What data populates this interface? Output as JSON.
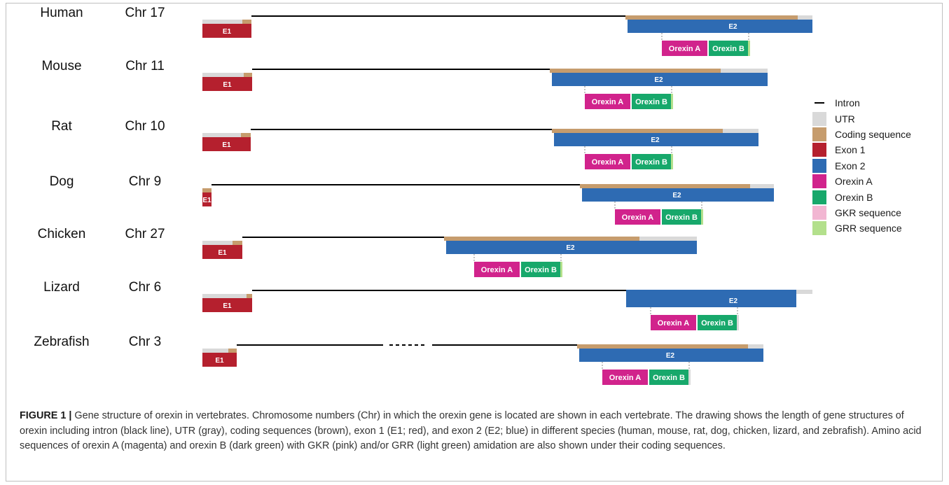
{
  "colors": {
    "intron": "#000000",
    "utr": "#d9d9d9",
    "coding": "#c69c6d",
    "exon1": "#b5202e",
    "exon2": "#2e6bb3",
    "orexin_a": "#d1238c",
    "orexin_b": "#17a86b",
    "gkr": "#f2b6d2",
    "grr": "#b3e08c"
  },
  "species": [
    {
      "name": "Human",
      "chr": "Chr 17",
      "e1": "E1",
      "e2": "E2",
      "orexin_a": "Orexin A",
      "orexin_b": "Orexin B"
    },
    {
      "name": "Mouse",
      "chr": "Chr 11",
      "e1": "E1",
      "e2": "E2",
      "orexin_a": "Orexin A",
      "orexin_b": "Orexin B"
    },
    {
      "name": "Rat",
      "chr": "Chr 10",
      "e1": "E1",
      "e2": "E2",
      "orexin_a": "Orexin A",
      "orexin_b": "Orexin B"
    },
    {
      "name": "Dog",
      "chr": "Chr 9",
      "e1": "E1",
      "e2": "E2",
      "orexin_a": "Orexin A",
      "orexin_b": "Orexin B"
    },
    {
      "name": "Chicken",
      "chr": "Chr 27",
      "e1": "E1",
      "e2": "E2",
      "orexin_a": "Orexin A",
      "orexin_b": "Orexin B"
    },
    {
      "name": "Lizard",
      "chr": "Chr 6",
      "e1": "E1",
      "e2": "E2",
      "orexin_a": "Orexin A",
      "orexin_b": "Orexin B"
    },
    {
      "name": "Zebrafish",
      "chr": "Chr 3",
      "e1": "E1",
      "e2": "E2",
      "orexin_a": "Orexin A",
      "orexin_b": "Orexin B"
    }
  ],
  "legend": [
    {
      "label": "Intron",
      "color": "#000000",
      "shape": "line"
    },
    {
      "label": "UTR",
      "color": "#d9d9d9",
      "shape": "box"
    },
    {
      "label": "Coding sequence",
      "color": "#c69c6d",
      "shape": "box"
    },
    {
      "label": "Exon 1",
      "color": "#b5202e",
      "shape": "box"
    },
    {
      "label": "Exon 2",
      "color": "#2e6bb3",
      "shape": "box"
    },
    {
      "label": "Orexin A",
      "color": "#d1238c",
      "shape": "box"
    },
    {
      "label": "Orexin B",
      "color": "#17a86b",
      "shape": "box"
    },
    {
      "label": "GKR sequence",
      "color": "#f2b6d2",
      "shape": "box"
    },
    {
      "label": "GRR sequence",
      "color": "#b3e08c",
      "shape": "box"
    }
  ],
  "caption": {
    "label": "FIGURE 1 |",
    "text": " Gene structure of orexin in vertebrates. Chromosome numbers (Chr) in which the orexin gene is located are shown in each vertebrate. The drawing shows the length of gene structures of orexin including intron (black line), UTR (gray), coding sequences (brown), exon 1 (E1; red), and exon 2 (E2; blue) in different species (human, mouse, rat, dog, chicken, lizard, and zebrafish). Amino acid sequences of orexin A (magenta) and orexin B (dark green) with GKR (pink) and/or GRR (light green) amidation are also shown under their coding sequences."
  }
}
